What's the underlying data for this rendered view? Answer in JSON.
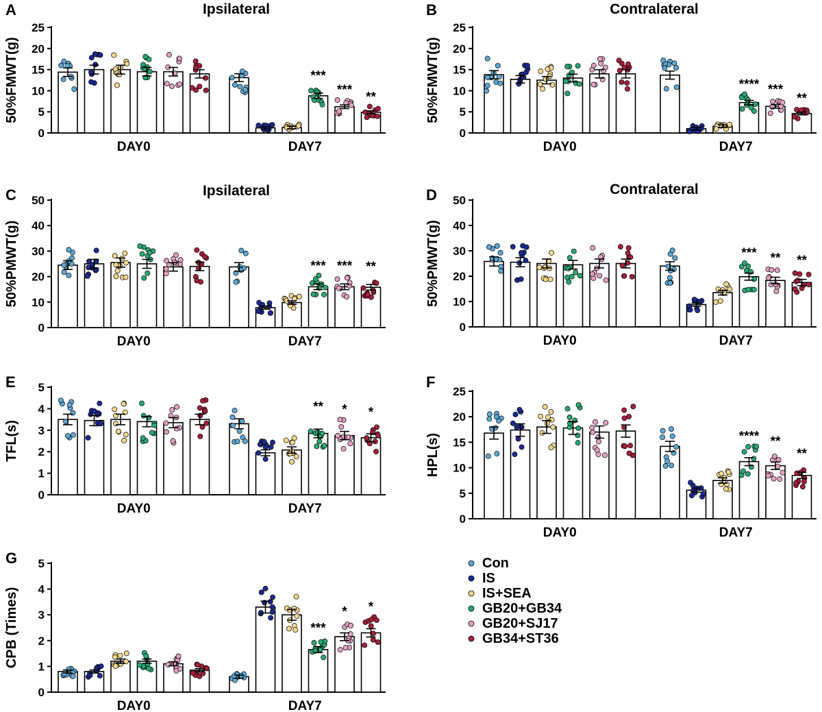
{
  "groups": [
    {
      "name": "Con",
      "color": "#5fa8d3"
    },
    {
      "name": "IS",
      "color": "#1c2b8f"
    },
    {
      "name": "IS+SEA",
      "color": "#f5d78e"
    },
    {
      "name": "GB20+GB34",
      "color": "#2aa876"
    },
    {
      "name": "GB20+SJ17",
      "color": "#e2a2c2"
    },
    {
      "name": "GB34+ST36",
      "color": "#a3213a"
    }
  ],
  "chart_data": [
    {
      "panel": "A",
      "type": "bar",
      "title": "Ipsilateral",
      "ylabel": "50%FMWT(g)",
      "ylim": [
        0,
        25
      ],
      "yticks": [
        0,
        5,
        10,
        15,
        20,
        25
      ],
      "categories": [
        "DAY0",
        "DAY7"
      ],
      "series": [
        {
          "name": "Con",
          "values": [
            14.4,
            13.1
          ]
        },
        {
          "name": "IS",
          "values": [
            15.0,
            1.2
          ]
        },
        {
          "name": "IS+SEA",
          "values": [
            15.0,
            1.3
          ]
        },
        {
          "name": "GB20+GB34",
          "values": [
            14.5,
            8.8
          ]
        },
        {
          "name": "GB20+SJ17",
          "values": [
            14.5,
            6.2
          ]
        },
        {
          "name": "GB34+ST36",
          "values": [
            14.0,
            4.9
          ]
        }
      ],
      "significance": [
        "",
        "",
        "",
        "***",
        "***",
        "**"
      ]
    },
    {
      "panel": "B",
      "type": "bar",
      "title": "Contralateral",
      "ylabel": "50%FMWT(g)",
      "ylim": [
        0,
        25
      ],
      "yticks": [
        0,
        5,
        10,
        15,
        20,
        25
      ],
      "categories": [
        "DAY0",
        "DAY7"
      ],
      "series": [
        {
          "name": "Con",
          "values": [
            13.8,
            13.7
          ]
        },
        {
          "name": "IS",
          "values": [
            12.7,
            1.0
          ]
        },
        {
          "name": "IS+SEA",
          "values": [
            12.5,
            1.6
          ]
        },
        {
          "name": "GB20+GB34",
          "values": [
            13.0,
            7.2
          ]
        },
        {
          "name": "GB20+SJ17",
          "values": [
            14.0,
            6.3
          ]
        },
        {
          "name": "GB34+ST36",
          "values": [
            14.0,
            4.6
          ]
        }
      ],
      "significance": [
        "",
        "",
        "",
        "****",
        "***",
        "**"
      ]
    },
    {
      "panel": "C",
      "type": "bar",
      "title": "Ipsilateral",
      "ylabel": "50%PMWT(g)",
      "ylim": [
        0,
        50
      ],
      "yticks": [
        0,
        10,
        20,
        30,
        40,
        50
      ],
      "categories": [
        "DAY0",
        "DAY7"
      ],
      "series": [
        {
          "name": "Con",
          "values": [
            24.5,
            23.8
          ]
        },
        {
          "name": "IS",
          "values": [
            25.0,
            7.8
          ]
        },
        {
          "name": "IS+SEA",
          "values": [
            25.5,
            9.8
          ]
        },
        {
          "name": "GB20+GB34",
          "values": [
            25.0,
            16.0
          ]
        },
        {
          "name": "GB20+SJ17",
          "values": [
            23.8,
            16.0
          ]
        },
        {
          "name": "GB34+ST36",
          "values": [
            24.0,
            15.8
          ]
        }
      ],
      "significance": [
        "",
        "",
        "",
        "***",
        "***",
        "**"
      ]
    },
    {
      "panel": "D",
      "type": "bar",
      "title": "Contralateral",
      "ylabel": "50%PMWT(g)",
      "ylim": [
        0,
        50
      ],
      "yticks": [
        0,
        10,
        20,
        30,
        40,
        50
      ],
      "categories": [
        "DAY0",
        "DAY7"
      ],
      "series": [
        {
          "name": "Con",
          "values": [
            25.8,
            24.0
          ]
        },
        {
          "name": "IS",
          "values": [
            25.5,
            8.8
          ]
        },
        {
          "name": "IS+SEA",
          "values": [
            25.0,
            13.5
          ]
        },
        {
          "name": "GB20+GB34",
          "values": [
            24.5,
            19.8
          ]
        },
        {
          "name": "GB20+SJ17",
          "values": [
            25.0,
            18.3
          ]
        },
        {
          "name": "GB34+ST36",
          "values": [
            25.0,
            17.5
          ]
        }
      ],
      "significance": [
        "",
        "",
        "",
        "***",
        "**",
        "**"
      ]
    },
    {
      "panel": "E",
      "type": "bar",
      "title": "",
      "ylabel": "TFL(s)",
      "ylim": [
        0,
        5
      ],
      "yticks": [
        0,
        1,
        2,
        3,
        4,
        5
      ],
      "categories": [
        "DAY0",
        "DAY7"
      ],
      "series": [
        {
          "name": "Con",
          "values": [
            3.5,
            3.3
          ]
        },
        {
          "name": "IS",
          "values": [
            3.45,
            1.95
          ]
        },
        {
          "name": "IS+SEA",
          "values": [
            3.5,
            2.08
          ]
        },
        {
          "name": "GB20+GB34",
          "values": [
            3.4,
            2.85
          ]
        },
        {
          "name": "GB20+SJ17",
          "values": [
            3.35,
            2.75
          ]
        },
        {
          "name": "GB34+ST36",
          "values": [
            3.5,
            2.65
          ]
        }
      ],
      "significance": [
        "",
        "",
        "",
        "**",
        "*",
        "*"
      ]
    },
    {
      "panel": "F",
      "type": "bar",
      "title": "",
      "ylabel": "HPL(s)",
      "ylim": [
        0,
        25
      ],
      "yticks": [
        0,
        5,
        10,
        15,
        20,
        25
      ],
      "categories": [
        "DAY0",
        "DAY7"
      ],
      "series": [
        {
          "name": "Con",
          "values": [
            16.8,
            14.2
          ]
        },
        {
          "name": "IS",
          "values": [
            17.4,
            5.6
          ]
        },
        {
          "name": "IS+SEA",
          "values": [
            18.0,
            7.5
          ]
        },
        {
          "name": "GB20+GB34",
          "values": [
            17.8,
            11.2
          ]
        },
        {
          "name": "GB20+SJ17",
          "values": [
            17.0,
            10.4
          ]
        },
        {
          "name": "GB34+ST36",
          "values": [
            17.2,
            8.5
          ]
        }
      ],
      "significance": [
        "",
        "",
        "",
        "****",
        "**",
        "**"
      ]
    },
    {
      "panel": "G",
      "type": "bar",
      "title": "",
      "ylabel": "CPB (Times)",
      "ylim": [
        0,
        5
      ],
      "yticks": [
        0,
        1,
        2,
        3,
        4,
        5
      ],
      "categories": [
        "DAY0",
        "DAY7"
      ],
      "series": [
        {
          "name": "Con",
          "values": [
            0.8,
            0.6
          ]
        },
        {
          "name": "IS",
          "values": [
            0.8,
            3.3
          ]
        },
        {
          "name": "IS+SEA",
          "values": [
            1.2,
            3.0
          ]
        },
        {
          "name": "GB20+GB34",
          "values": [
            1.2,
            1.65
          ]
        },
        {
          "name": "GB20+SJ17",
          "values": [
            1.1,
            2.15
          ]
        },
        {
          "name": "GB34+ST36",
          "values": [
            0.85,
            2.3
          ]
        }
      ],
      "significance": [
        "",
        "",
        "",
        "***",
        "*",
        "*"
      ]
    }
  ]
}
